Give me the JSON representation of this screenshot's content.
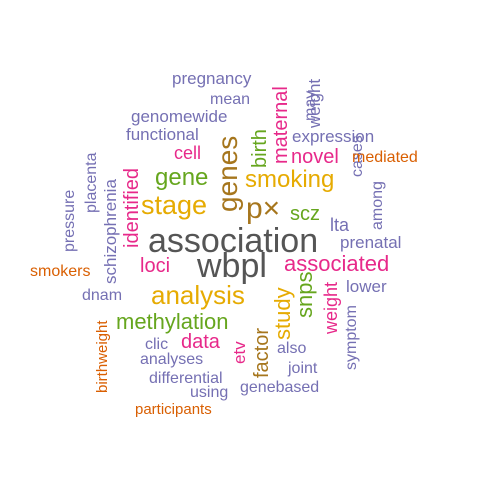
{
  "palette": {
    "purple": "#7570b3",
    "magenta": "#e7298a",
    "gold": "#e6ab02",
    "green": "#66a61e",
    "orange": "#d95f02",
    "brown": "#a6761d",
    "gray": "#555555"
  },
  "words": [
    {
      "text": "pregnancy",
      "color": "#7570b3",
      "orientation": "horizontal"
    },
    {
      "text": "mean",
      "color": "#7570b3",
      "orientation": "horizontal"
    },
    {
      "text": "genomewide",
      "color": "#7570b3",
      "orientation": "horizontal"
    },
    {
      "text": "functional",
      "color": "#7570b3",
      "orientation": "horizontal"
    },
    {
      "text": "may",
      "color": "#7570b3",
      "orientation": "vertical"
    },
    {
      "text": "weight",
      "color": "#7570b3",
      "orientation": "vertical"
    },
    {
      "text": "maternal",
      "color": "#e7298a",
      "orientation": "vertical"
    },
    {
      "text": "birth",
      "color": "#66a61e",
      "orientation": "vertical"
    },
    {
      "text": "genes",
      "color": "#a6761d",
      "orientation": "vertical"
    },
    {
      "text": "expression",
      "color": "#7570b3",
      "orientation": "horizontal"
    },
    {
      "text": "cases",
      "color": "#7570b3",
      "orientation": "vertical"
    },
    {
      "text": "cell",
      "color": "#e7298a",
      "orientation": "horizontal"
    },
    {
      "text": "novel",
      "color": "#e7298a",
      "orientation": "horizontal"
    },
    {
      "text": "mediated",
      "color": "#d95f02",
      "orientation": "horizontal"
    },
    {
      "text": "placenta",
      "color": "#7570b3",
      "orientation": "vertical"
    },
    {
      "text": "identified",
      "color": "#e7298a",
      "orientation": "vertical"
    },
    {
      "text": "gene",
      "color": "#66a61e",
      "orientation": "horizontal"
    },
    {
      "text": "smoking",
      "color": "#e6ab02",
      "orientation": "horizontal"
    },
    {
      "text": "among",
      "color": "#7570b3",
      "orientation": "vertical"
    },
    {
      "text": "pressure",
      "color": "#7570b3",
      "orientation": "vertical"
    },
    {
      "text": "schizophrenia",
      "color": "#7570b3",
      "orientation": "vertical"
    },
    {
      "text": "stage",
      "color": "#e6ab02",
      "orientation": "horizontal"
    },
    {
      "text": "p×",
      "color": "#a6761d",
      "orientation": "horizontal"
    },
    {
      "text": "scz",
      "color": "#66a61e",
      "orientation": "horizontal"
    },
    {
      "text": "lta",
      "color": "#7570b3",
      "orientation": "horizontal"
    },
    {
      "text": "prenatal",
      "color": "#7570b3",
      "orientation": "horizontal"
    },
    {
      "text": "association",
      "color": "#555555",
      "orientation": "horizontal"
    },
    {
      "text": "smokers",
      "color": "#d95f02",
      "orientation": "horizontal"
    },
    {
      "text": "loci",
      "color": "#e7298a",
      "orientation": "horizontal"
    },
    {
      "text": "wbpl",
      "color": "#555555",
      "orientation": "horizontal"
    },
    {
      "text": "associated",
      "color": "#e7298a",
      "orientation": "horizontal"
    },
    {
      "text": "dnam",
      "color": "#7570b3",
      "orientation": "horizontal"
    },
    {
      "text": "analysis",
      "color": "#e6ab02",
      "orientation": "horizontal"
    },
    {
      "text": "study",
      "color": "#e6ab02",
      "orientation": "vertical"
    },
    {
      "text": "snps",
      "color": "#66a61e",
      "orientation": "vertical"
    },
    {
      "text": "lower",
      "color": "#7570b3",
      "orientation": "horizontal"
    },
    {
      "text": "symptom",
      "color": "#7570b3",
      "orientation": "vertical"
    },
    {
      "text": "birthweight",
      "color": "#d95f02",
      "orientation": "vertical"
    },
    {
      "text": "methylation",
      "color": "#66a61e",
      "orientation": "horizontal"
    },
    {
      "text": "factor",
      "color": "#a6761d",
      "orientation": "vertical"
    },
    {
      "text": "data",
      "color": "#e7298a",
      "orientation": "horizontal"
    },
    {
      "text": "etv",
      "color": "#e7298a",
      "orientation": "vertical"
    },
    {
      "text": "clic",
      "color": "#7570b3",
      "orientation": "horizontal"
    },
    {
      "text": "also",
      "color": "#7570b3",
      "orientation": "horizontal"
    },
    {
      "text": "analyses",
      "color": "#7570b3",
      "orientation": "horizontal"
    },
    {
      "text": "joint",
      "color": "#7570b3",
      "orientation": "horizontal"
    },
    {
      "text": "differential",
      "color": "#7570b3",
      "orientation": "horizontal"
    },
    {
      "text": "using",
      "color": "#7570b3",
      "orientation": "horizontal"
    },
    {
      "text": "genebased",
      "color": "#7570b3",
      "orientation": "horizontal"
    },
    {
      "text": "participants",
      "color": "#d95f02",
      "orientation": "horizontal"
    }
  ]
}
